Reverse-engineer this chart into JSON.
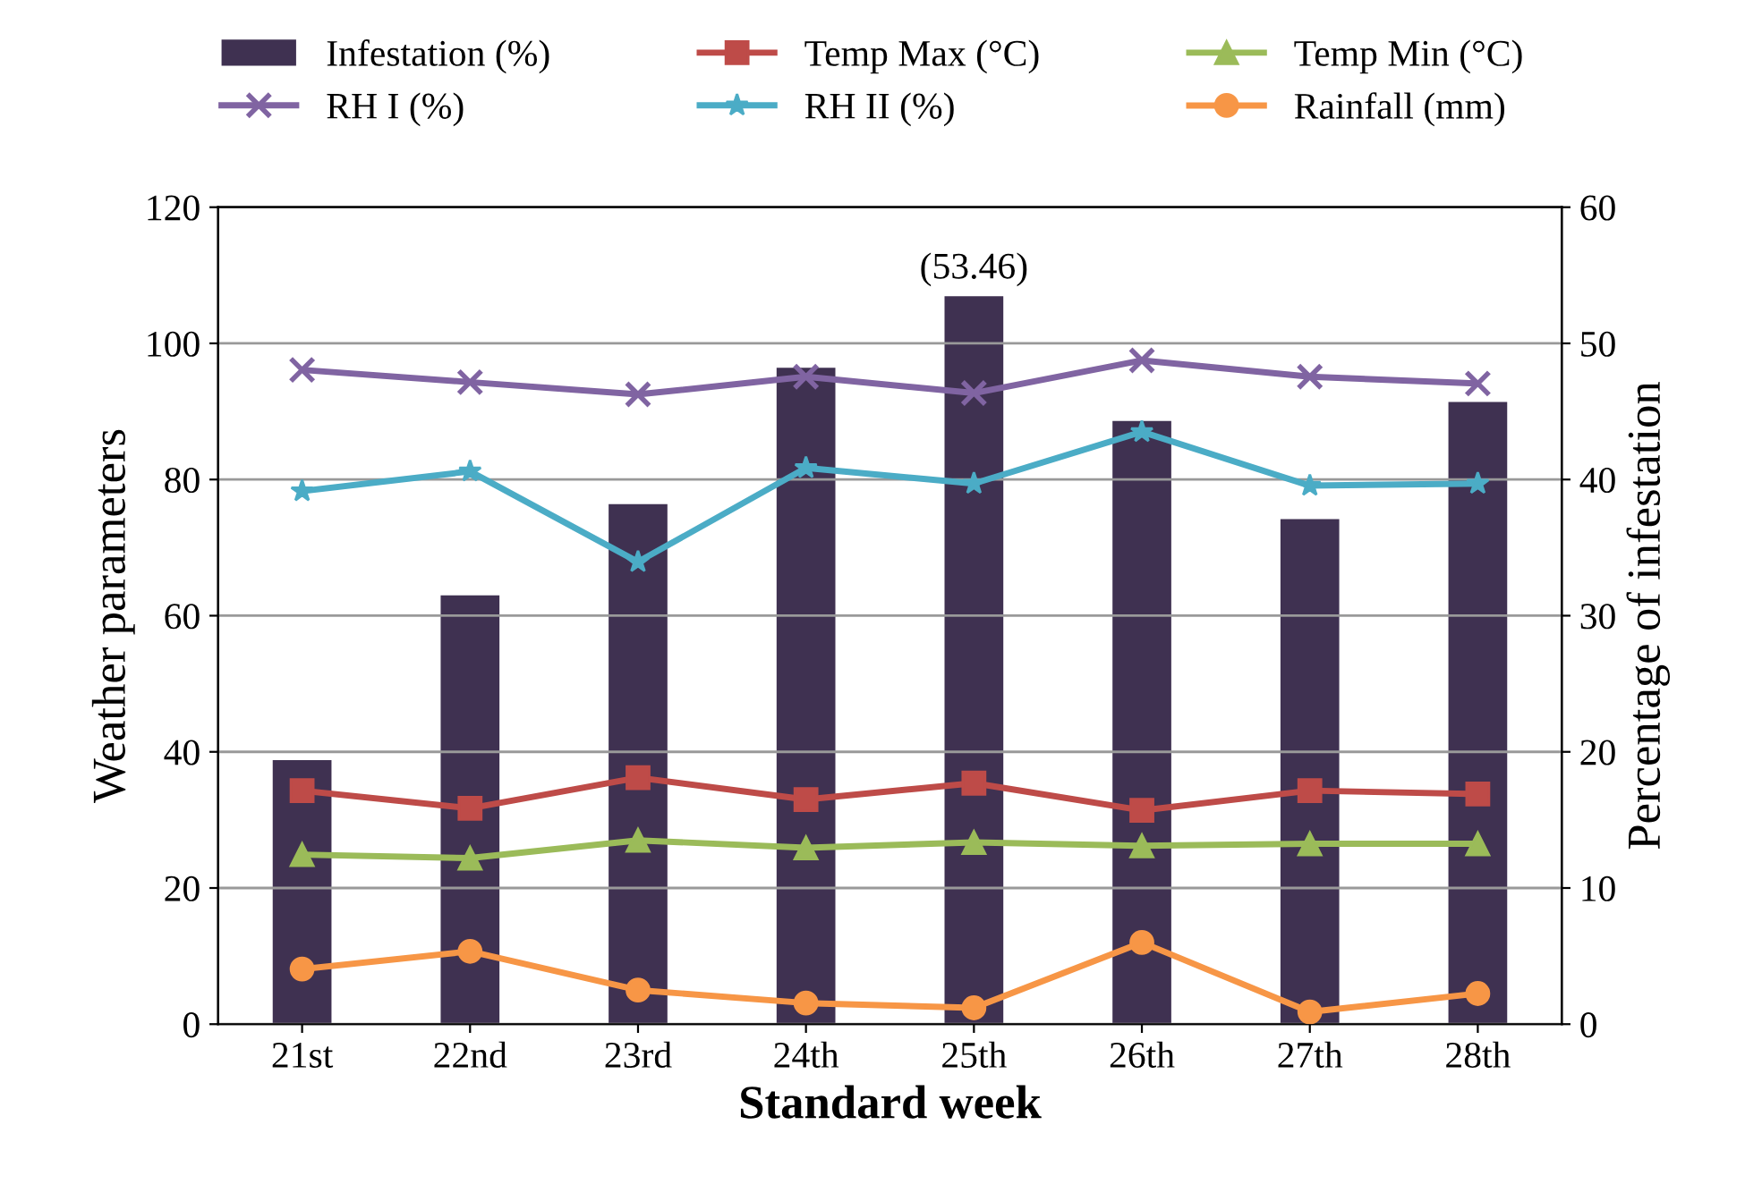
{
  "chart_data": {
    "type": "line",
    "xlabel": "Standard week",
    "ylabel": "Weather parameters",
    "y2label": "Percentage of infestation",
    "categories": [
      "21st",
      "22nd",
      "23rd",
      "24th",
      "25th",
      "26th",
      "27th",
      "28th"
    ],
    "series": [
      {
        "name": "Infestation (%)",
        "type": "bar",
        "axis": "y2",
        "color": "#3f3151",
        "values": [
          19.4,
          31.5,
          38.2,
          48.2,
          53.46,
          44.3,
          37.1,
          45.7
        ],
        "value_labels": [
          null,
          null,
          null,
          null,
          "(53.46)",
          null,
          null,
          null
        ]
      },
      {
        "name": "Temp Max (°C)",
        "color": "#be4b48",
        "marker": "square",
        "values": [
          34.3,
          31.7,
          36.2,
          33.0,
          35.4,
          31.4,
          34.3,
          33.8
        ]
      },
      {
        "name": "Temp Min (°C)",
        "color": "#9bbb59",
        "marker": "triangle",
        "values": [
          24.9,
          24.4,
          27.0,
          25.9,
          26.7,
          26.2,
          26.5,
          26.5
        ]
      },
      {
        "name": "RH I (%)",
        "color": "#8064a2",
        "marker": "cross",
        "values": [
          96.1,
          94.3,
          92.5,
          95.1,
          92.7,
          97.5,
          95.1,
          94.1
        ]
      },
      {
        "name": "RH II (%)",
        "color": "#4bacc6",
        "marker": "star",
        "values": [
          78.3,
          81.2,
          67.9,
          81.7,
          79.4,
          87.0,
          79.1,
          79.4
        ]
      },
      {
        "name": "Rainfall (mm)",
        "color": "#f79646",
        "marker": "circle",
        "values": [
          8.1,
          10.7,
          5.0,
          3.1,
          2.4,
          12.0,
          1.8,
          4.5
        ]
      }
    ],
    "ylim": [
      0,
      120
    ],
    "yticks": [
      0,
      20,
      40,
      60,
      80,
      100,
      120
    ],
    "y2lim": [
      0,
      60
    ],
    "y2ticks": [
      0,
      10,
      20,
      30,
      40,
      50,
      60
    ],
    "grid": "y",
    "legend": "top"
  }
}
